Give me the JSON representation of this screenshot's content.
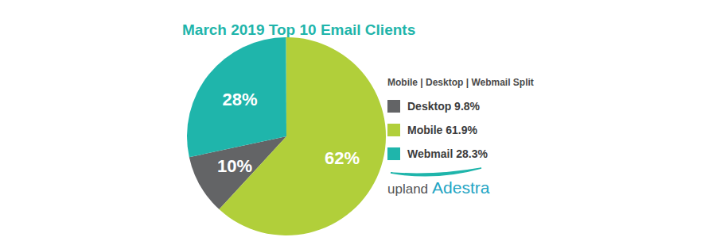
{
  "chart_data": {
    "type": "pie",
    "title": "March 2019 Top 10 Email Clients",
    "legend_title": "Mobile | Desktop | Webmail Split",
    "categories": [
      "Desktop 9.8%",
      "Mobile 61.9%",
      "Webmail 28.3%"
    ],
    "values": [
      9.8,
      61.9,
      28.3
    ],
    "value_labels": [
      "10%",
      "62%",
      "28%"
    ],
    "colors": [
      "#636466",
      "#b1cf3a",
      "#1fb5ab"
    ],
    "data_labels": true,
    "legend": "right",
    "annotations": [
      "upland",
      "Adestra"
    ]
  }
}
